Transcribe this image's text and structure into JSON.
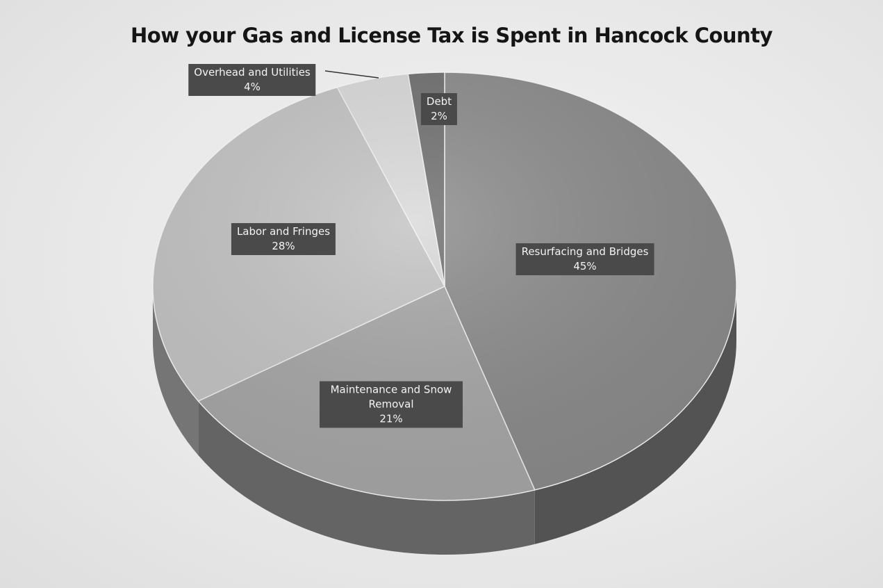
{
  "chart_data": {
    "type": "pie",
    "title": "How your Gas and License Tax is Spent in Hancock County",
    "slices": [
      {
        "label": "Resurfacing and Bridges",
        "value": 45,
        "value_label": "45%",
        "color": "#8a8a8a"
      },
      {
        "label": "Maintenance and Snow Removal",
        "value": 21,
        "value_label": "21%",
        "color": "#a6a6a6"
      },
      {
        "label": "Labor and Fringes",
        "value": 28,
        "value_label": "28%",
        "color": "#c3c3c3"
      },
      {
        "label": "Overhead and Utilities",
        "value": 4,
        "value_label": "4%",
        "color": "#d9d9d9"
      },
      {
        "label": "Debt",
        "value": 2,
        "value_label": "2%",
        "color": "#6e6e6e"
      }
    ],
    "style": "3d",
    "legend": "none"
  }
}
